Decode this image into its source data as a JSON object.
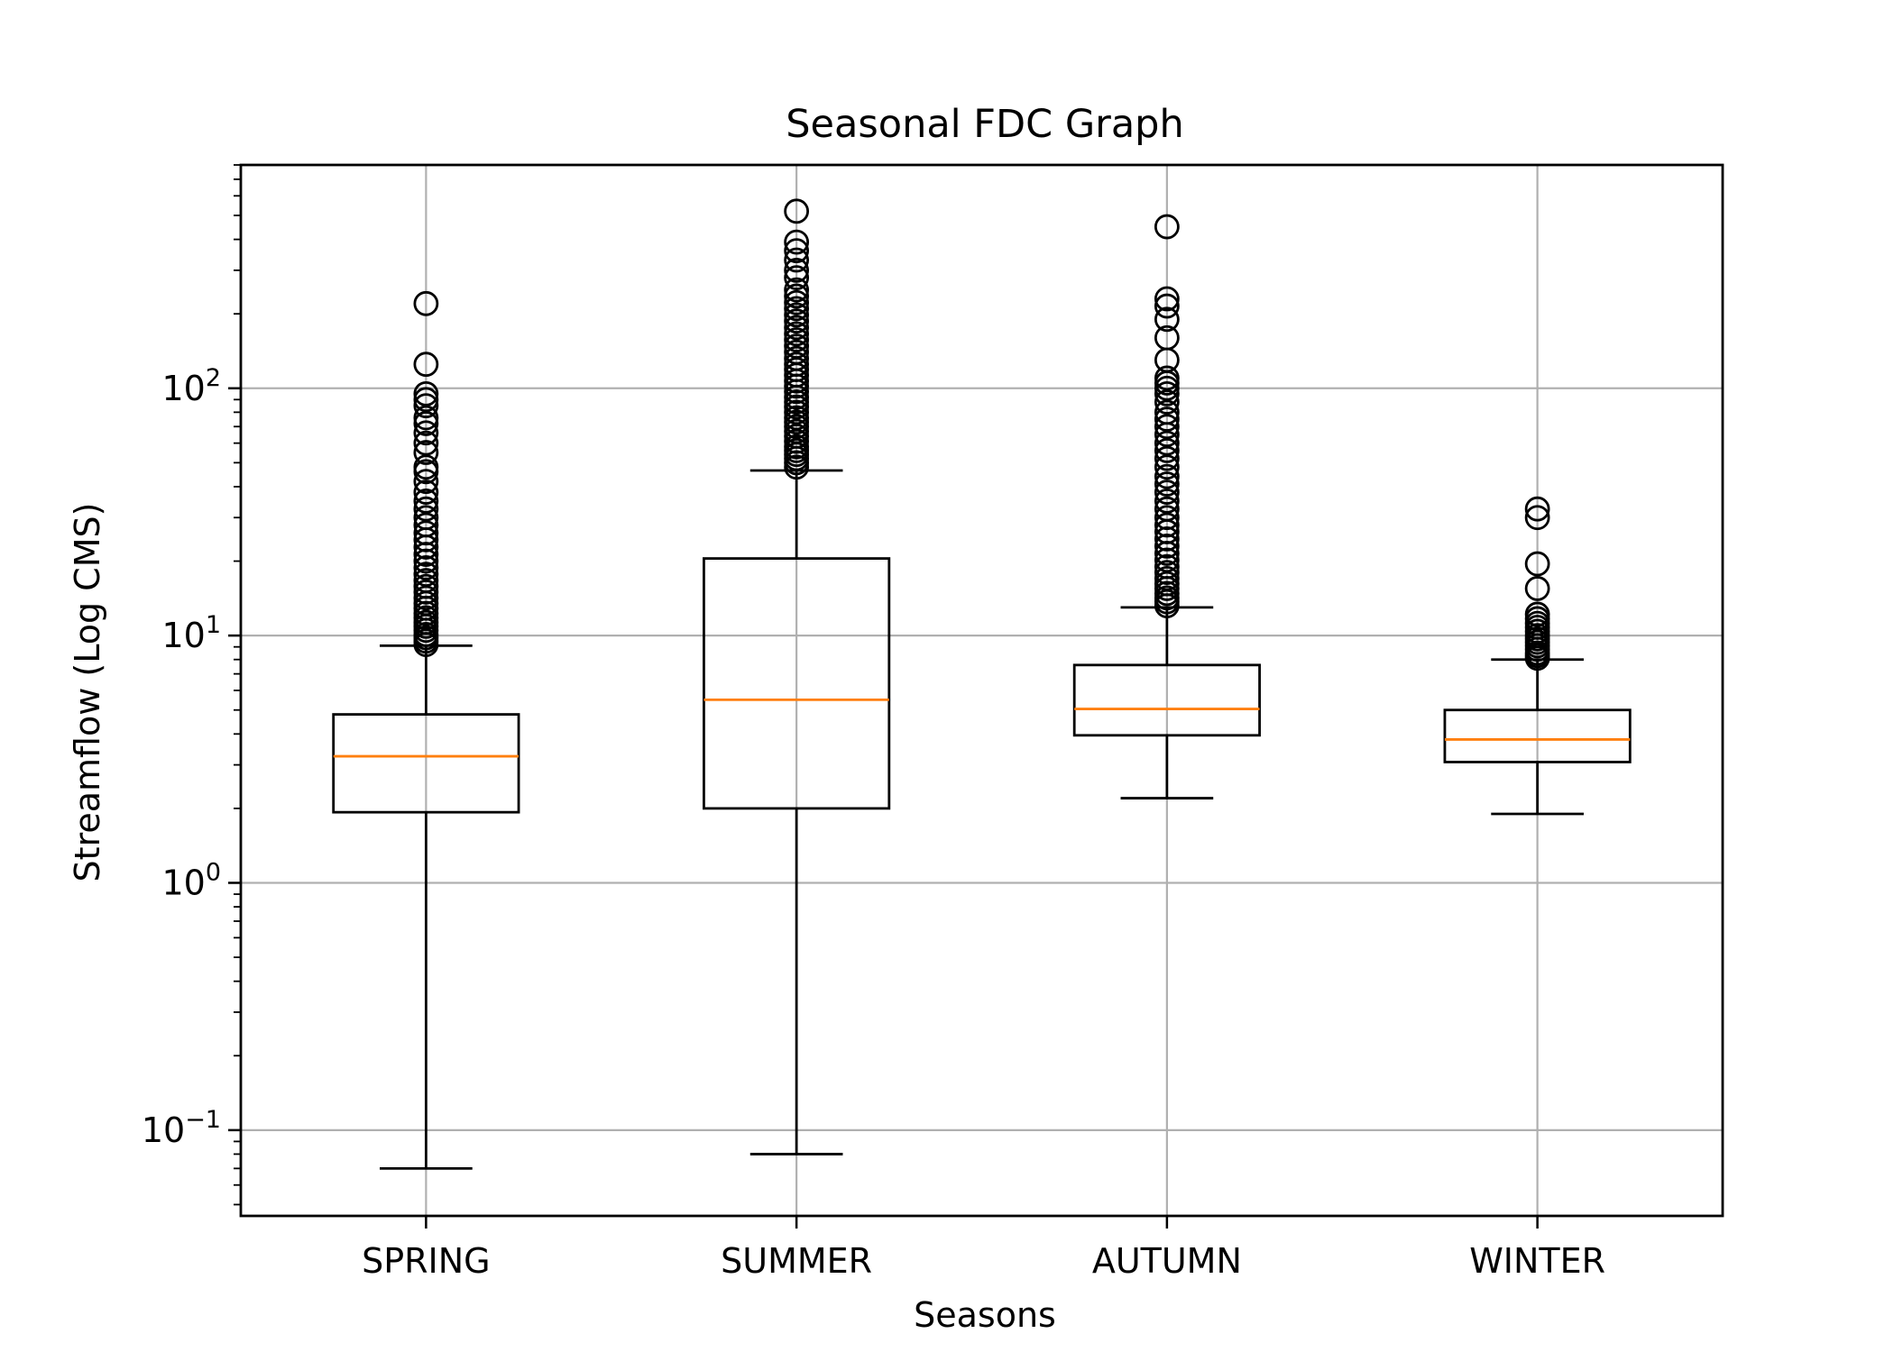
{
  "chart_data": {
    "type": "boxplot",
    "title": "Seasonal FDC Graph",
    "xlabel": "Seasons",
    "ylabel": "Streamflow (Log CMS)",
    "yscale": "log",
    "ylim": [
      0.045,
      800
    ],
    "grid": true,
    "y_ticks": [
      {
        "value": 0.1,
        "base": "10",
        "exp": "−1"
      },
      {
        "value": 1,
        "base": "10",
        "exp": "0"
      },
      {
        "value": 10,
        "base": "10",
        "exp": "1"
      },
      {
        "value": 100,
        "base": "10",
        "exp": "2"
      }
    ],
    "colors": {
      "box": "#000000",
      "median": "#ff7f0e",
      "grid": "#b0b0b0"
    },
    "categories": [
      "SPRING",
      "SUMMER",
      "AUTUMN",
      "WINTER"
    ],
    "boxes": [
      {
        "label": "SPRING",
        "whisker_low": 0.07,
        "q1": 1.93,
        "median": 3.25,
        "q3": 4.8,
        "whisker_high": 9.1,
        "outliers": [
          9.2,
          9.5,
          9.8,
          10.1,
          10.5,
          10.9,
          11.3,
          11.8,
          12.3,
          12.9,
          13.5,
          14.2,
          15.0,
          15.8,
          16.7,
          17.7,
          18.8,
          20,
          21.3,
          22.8,
          24.4,
          26,
          28,
          30,
          32.5,
          35,
          38,
          42,
          46,
          48,
          55,
          60,
          66,
          72,
          76,
          85,
          90,
          95,
          125,
          220
        ]
      },
      {
        "label": "SUMMER",
        "whisker_low": 0.08,
        "q1": 2.0,
        "median": 5.5,
        "q3": 20.5,
        "whisker_high": 46.5,
        "outliers": [
          48,
          50,
          52,
          54,
          56,
          58,
          61,
          64,
          67,
          70,
          73,
          76,
          80,
          84,
          88,
          92,
          97,
          102,
          107,
          113,
          119,
          125,
          132,
          140,
          148,
          157,
          166,
          176,
          187,
          198,
          210,
          222,
          236,
          250,
          280,
          300,
          330,
          360,
          390,
          520
        ]
      },
      {
        "label": "AUTUMN",
        "whisker_low": 2.2,
        "q1": 3.95,
        "median": 5.05,
        "q3": 7.6,
        "whisker_high": 13.0,
        "outliers": [
          13.2,
          13.7,
          14.2,
          14.8,
          15.5,
          16.2,
          17,
          18,
          19,
          20.2,
          21.5,
          23,
          24.6,
          26.3,
          28,
          30,
          32.5,
          35,
          38,
          41,
          44,
          48,
          52,
          56,
          60,
          65,
          70,
          75,
          80,
          88,
          95,
          100,
          105,
          110,
          130,
          160,
          190,
          215,
          230,
          450
        ]
      },
      {
        "label": "WINTER",
        "whisker_low": 1.9,
        "q1": 3.08,
        "median": 3.8,
        "q3": 5.0,
        "whisker_high": 8.0,
        "outliers": [
          8.1,
          8.3,
          8.5,
          8.8,
          9.1,
          9.4,
          9.7,
          10.0,
          10.4,
          10.8,
          11.2,
          11.7,
          12.2,
          15.5,
          19.5,
          30,
          32.5
        ]
      }
    ]
  }
}
